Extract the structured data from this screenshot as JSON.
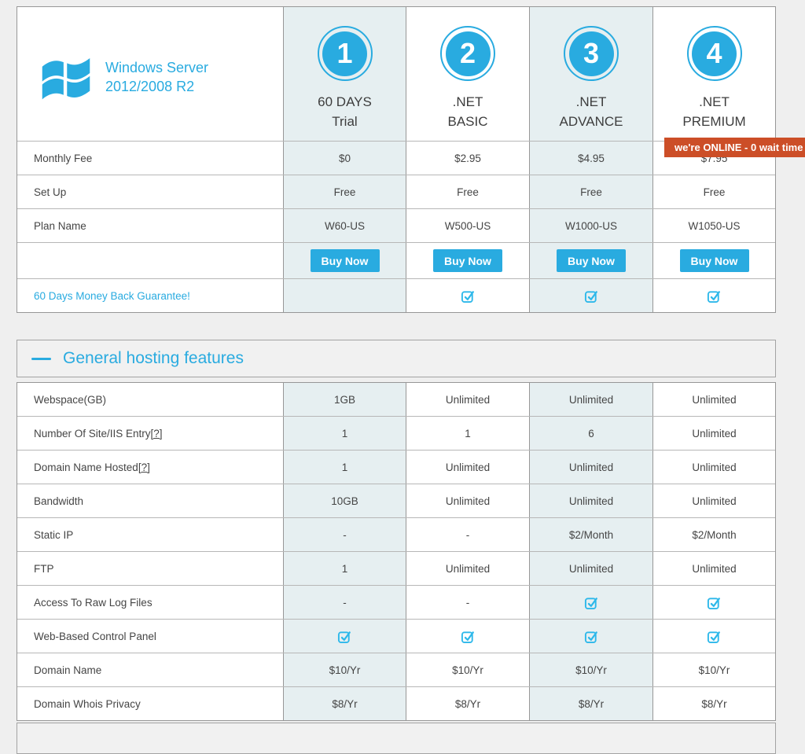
{
  "colors": {
    "accent": "#29abe0",
    "check": "#2db8ea",
    "banner": "#cc4e27",
    "highlight": "#e6eff1"
  },
  "banner": {
    "text": "we're ONLINE - 0 wait time"
  },
  "pricing": {
    "brand": {
      "line1": "Windows Server",
      "line2": "2012/2008 R2"
    },
    "plans": [
      {
        "number": "1",
        "name_line1": "60 DAYS",
        "name_line2": "Trial",
        "highlighted": true
      },
      {
        "number": "2",
        "name_line1": ".NET",
        "name_line2": "BASIC",
        "highlighted": false
      },
      {
        "number": "3",
        "name_line1": ".NET",
        "name_line2": "ADVANCE",
        "highlighted": true
      },
      {
        "number": "4",
        "name_line1": ".NET",
        "name_line2": "PREMIUM",
        "highlighted": false
      }
    ],
    "rows": [
      {
        "label": "Monthly Fee",
        "values": [
          "$0",
          "$2.95",
          "$4.95",
          "$7.95"
        ]
      },
      {
        "label": "Set Up",
        "values": [
          "Free",
          "Free",
          "Free",
          "Free"
        ]
      },
      {
        "label": "Plan Name",
        "values": [
          "W60-US",
          "W500-US",
          "W1000-US",
          "W1050-US"
        ]
      }
    ],
    "buy_button_label": "Buy Now",
    "guarantee": {
      "label": "60 Days Money Back Guarantee!",
      "values": [
        "",
        "check",
        "check",
        "check"
      ]
    }
  },
  "features_section": {
    "title": "General hosting features",
    "rows": [
      {
        "label": "Webspace(GB)",
        "help": "",
        "values": [
          "1GB",
          "Unlimited",
          "Unlimited",
          "Unlimited"
        ]
      },
      {
        "label": "Number Of Site/IIS Entry",
        "help": "[?]",
        "values": [
          "1",
          "1",
          "6",
          "Unlimited"
        ]
      },
      {
        "label": "Domain Name Hosted",
        "help": "[?]",
        "values": [
          "1",
          "Unlimited",
          "Unlimited",
          "Unlimited"
        ]
      },
      {
        "label": "Bandwidth",
        "help": "",
        "values": [
          "10GB",
          "Unlimited",
          "Unlimited",
          "Unlimited"
        ]
      },
      {
        "label": "Static IP",
        "help": "",
        "values": [
          "-",
          "-",
          "$2/Month",
          "$2/Month"
        ]
      },
      {
        "label": "FTP",
        "help": "",
        "values": [
          "1",
          "Unlimited",
          "Unlimited",
          "Unlimited"
        ]
      },
      {
        "label": "Access To Raw Log Files",
        "help": "",
        "values": [
          "-",
          "-",
          "check",
          "check"
        ]
      },
      {
        "label": "Web-Based Control Panel",
        "help": "",
        "values": [
          "check",
          "check",
          "check",
          "check"
        ]
      },
      {
        "label": "Domain Name",
        "help": "",
        "values": [
          "$10/Yr",
          "$10/Yr",
          "$10/Yr",
          "$10/Yr"
        ]
      },
      {
        "label": "Domain Whois Privacy",
        "help": "",
        "values": [
          "$8/Yr",
          "$8/Yr",
          "$8/Yr",
          "$8/Yr"
        ]
      }
    ]
  }
}
